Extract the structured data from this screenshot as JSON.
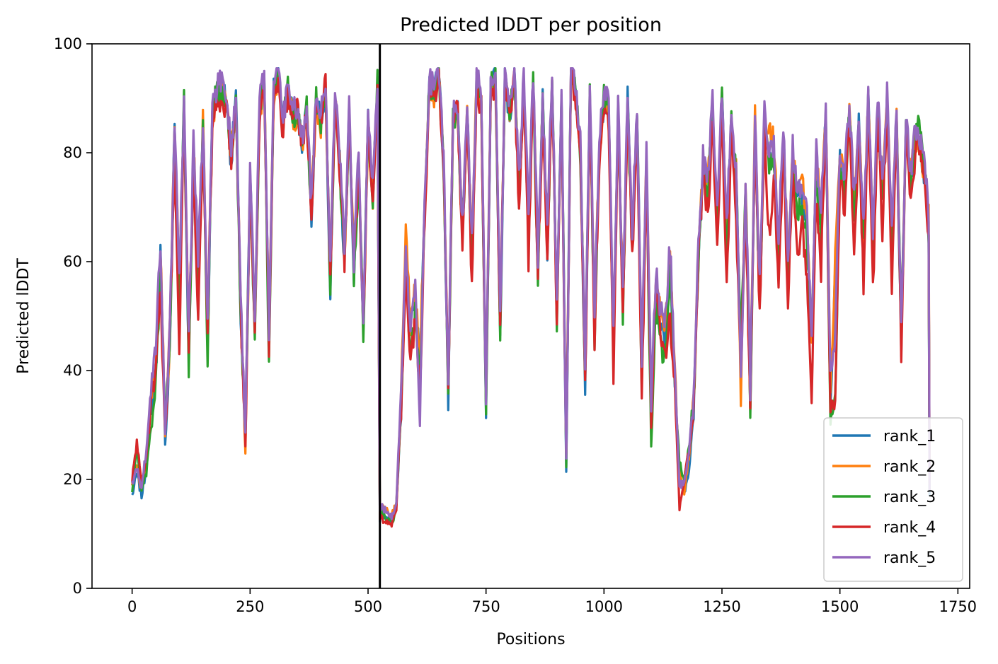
{
  "chart_data": {
    "type": "line",
    "title": "Predicted lDDT per position",
    "xlabel": "Positions",
    "ylabel": "Predicted lDDT",
    "xlim": [
      -85,
      1775
    ],
    "ylim": [
      0,
      100
    ],
    "xticks": [
      0,
      250,
      500,
      750,
      1000,
      1250,
      1500,
      1750
    ],
    "yticks": [
      0,
      20,
      40,
      60,
      80,
      100
    ],
    "grid": false,
    "legend_position": "lower-right",
    "vline_x": 525,
    "x_end": 1690,
    "keypoints_x": [
      0,
      10,
      20,
      30,
      40,
      50,
      60,
      70,
      80,
      90,
      100,
      110,
      120,
      130,
      140,
      150,
      160,
      170,
      180,
      190,
      200,
      210,
      220,
      230,
      240,
      250,
      260,
      270,
      280,
      290,
      300,
      310,
      320,
      330,
      340,
      350,
      360,
      370,
      380,
      390,
      400,
      410,
      420,
      430,
      440,
      450,
      460,
      470,
      480,
      490,
      500,
      510,
      520,
      525,
      530,
      540,
      550,
      560,
      570,
      580,
      590,
      600,
      610,
      620,
      630,
      640,
      650,
      660,
      670,
      680,
      690,
      700,
      710,
      720,
      730,
      740,
      750,
      760,
      770,
      780,
      790,
      800,
      810,
      820,
      830,
      840,
      850,
      860,
      870,
      880,
      890,
      900,
      910,
      920,
      930,
      940,
      950,
      960,
      970,
      980,
      990,
      1000,
      1010,
      1020,
      1030,
      1040,
      1050,
      1060,
      1070,
      1080,
      1090,
      1100,
      1110,
      1120,
      1130,
      1140,
      1150,
      1160,
      1170,
      1180,
      1190,
      1200,
      1210,
      1220,
      1230,
      1240,
      1250,
      1260,
      1270,
      1280,
      1290,
      1300,
      1310,
      1320,
      1330,
      1340,
      1350,
      1360,
      1370,
      1380,
      1390,
      1400,
      1410,
      1420,
      1430,
      1440,
      1450,
      1460,
      1470,
      1480,
      1490,
      1500,
      1510,
      1520,
      1530,
      1540,
      1550,
      1560,
      1570,
      1580,
      1590,
      1600,
      1610,
      1620,
      1630,
      1640,
      1650,
      1660,
      1670,
      1680,
      1690
    ],
    "series": [
      {
        "name": "rank_1",
        "color": "#1f77b4",
        "values": [
          17,
          21,
          17,
          22,
          33,
          39,
          62,
          26,
          45,
          85,
          55,
          89,
          42,
          80,
          58,
          85,
          45,
          88,
          91,
          92,
          90,
          78,
          91,
          50,
          28,
          76,
          47,
          88,
          94,
          46,
          92,
          95,
          85,
          92,
          88,
          87,
          82,
          88,
          68,
          90,
          86,
          92,
          55,
          91,
          78,
          59,
          88,
          57,
          78,
          47,
          86,
          71,
          93,
          13,
          14,
          13,
          12,
          15,
          33,
          62,
          46,
          54,
          40,
          70,
          93,
          91,
          95,
          78,
          34,
          86,
          88,
          64,
          88,
          60,
          94,
          89,
          33,
          92,
          94,
          46,
          95,
          86,
          95,
          73,
          93,
          66,
          94,
          57,
          90,
          62,
          95,
          49,
          90,
          22,
          95,
          92,
          80,
          38,
          91,
          48,
          80,
          90,
          88,
          43,
          88,
          52,
          90,
          63,
          88,
          40,
          78,
          31,
          55,
          48,
          45,
          60,
          38,
          20,
          17,
          22,
          32,
          60,
          77,
          73,
          88,
          66,
          90,
          64,
          86,
          76,
          45,
          72,
          34,
          84,
          53,
          86,
          78,
          80,
          61,
          84,
          58,
          79,
          70,
          72,
          66,
          46,
          78,
          66,
          88,
          35,
          58,
          79,
          74,
          88,
          68,
          85,
          63,
          90,
          62,
          89,
          71,
          90,
          62,
          88,
          44,
          86,
          75,
          82,
          80,
          75,
          64,
          86,
          70,
          87,
          17
        ]
      },
      {
        "name": "rank_2",
        "color": "#ff7f0e",
        "values": [
          19,
          23,
          18,
          23,
          34,
          40,
          63,
          28,
          46,
          86,
          56,
          88,
          44,
          81,
          59,
          86,
          47,
          87,
          90,
          91,
          89,
          80,
          90,
          52,
          24,
          76,
          48,
          87,
          93,
          48,
          91,
          94,
          84,
          91,
          87,
          86,
          81,
          87,
          70,
          89,
          85,
          91,
          57,
          90,
          79,
          61,
          87,
          59,
          79,
          45,
          85,
          72,
          92,
          15,
          15,
          14,
          13,
          16,
          35,
          68,
          48,
          55,
          42,
          71,
          92,
          90,
          94,
          79,
          36,
          85,
          87,
          66,
          87,
          62,
          93,
          88,
          35,
          91,
          93,
          48,
          94,
          87,
          94,
          74,
          92,
          68,
          93,
          59,
          89,
          64,
          94,
          51,
          89,
          24,
          94,
          91,
          81,
          40,
          90,
          50,
          81,
          89,
          87,
          45,
          87,
          54,
          89,
          65,
          87,
          42,
          79,
          33,
          57,
          50,
          48,
          62,
          40,
          22,
          18,
          24,
          34,
          62,
          78,
          74,
          87,
          68,
          89,
          66,
          85,
          77,
          35,
          74,
          36,
          88,
          55,
          86,
          84,
          82,
          63,
          83,
          60,
          80,
          72,
          74,
          68,
          46,
          80,
          68,
          87,
          37,
          60,
          80,
          75,
          87,
          70,
          84,
          65,
          89,
          64,
          88,
          73,
          89,
          64,
          87,
          46,
          85,
          76,
          83,
          81,
          76,
          66,
          85,
          72,
          90,
          19
        ]
      },
      {
        "name": "rank_3",
        "color": "#2ca02c",
        "values": [
          18,
          26,
          18,
          21,
          30,
          37,
          58,
          30,
          45,
          84,
          52,
          89,
          40,
          80,
          56,
          84,
          43,
          88,
          91,
          91,
          90,
          80,
          90,
          49,
          28,
          75,
          45,
          88,
          94,
          40,
          92,
          94,
          85,
          92,
          87,
          87,
          82,
          88,
          69,
          90,
          86,
          92,
          53,
          91,
          78,
          58,
          88,
          56,
          78,
          47,
          86,
          71,
          93,
          14,
          14,
          13,
          12,
          15,
          33,
          61,
          42,
          52,
          38,
          69,
          93,
          91,
          95,
          77,
          34,
          86,
          88,
          63,
          88,
          59,
          94,
          89,
          34,
          92,
          94,
          48,
          95,
          86,
          95,
          72,
          93,
          65,
          94,
          55,
          90,
          61,
          95,
          47,
          90,
          23,
          95,
          92,
          80,
          37,
          91,
          46,
          80,
          90,
          88,
          42,
          88,
          50,
          90,
          62,
          88,
          38,
          78,
          26,
          52,
          44,
          43,
          58,
          38,
          23,
          20,
          26,
          33,
          61,
          77,
          72,
          88,
          65,
          90,
          62,
          86,
          75,
          45,
          72,
          33,
          84,
          52,
          86,
          78,
          79,
          60,
          84,
          56,
          79,
          69,
          71,
          64,
          46,
          77,
          64,
          88,
          30,
          35,
          78,
          72,
          88,
          66,
          85,
          62,
          90,
          60,
          89,
          70,
          90,
          60,
          88,
          46,
          86,
          74,
          82,
          86,
          76,
          63,
          86,
          69,
          87,
          18
        ]
      },
      {
        "name": "rank_4",
        "color": "#d62728",
        "values": [
          20,
          27,
          19,
          24,
          35,
          41,
          55,
          29,
          47,
          80,
          43,
          87,
          45,
          78,
          50,
          82,
          48,
          86,
          89,
          90,
          88,
          79,
          89,
          51,
          26,
          74,
          49,
          86,
          93,
          45,
          90,
          94,
          83,
          91,
          86,
          88,
          81,
          87,
          69,
          89,
          86,
          94,
          56,
          90,
          77,
          60,
          87,
          58,
          78,
          48,
          86,
          70,
          92,
          13,
          13,
          12,
          12,
          15,
          33,
          58,
          40,
          50,
          36,
          68,
          92,
          90,
          94,
          78,
          37,
          88,
          87,
          63,
          86,
          55,
          92,
          88,
          36,
          90,
          93,
          49,
          94,
          88,
          93,
          70,
          91,
          60,
          92,
          58,
          87,
          60,
          93,
          50,
          88,
          25,
          94,
          90,
          79,
          36,
          89,
          46,
          79,
          88,
          86,
          40,
          86,
          51,
          88,
          61,
          86,
          33,
          77,
          30,
          58,
          46,
          43,
          50,
          37,
          15,
          20,
          25,
          33,
          60,
          76,
          68,
          87,
          62,
          88,
          55,
          85,
          68,
          42,
          70,
          34,
          82,
          50,
          84,
          64,
          76,
          55,
          82,
          52,
          77,
          62,
          66,
          58,
          34,
          72,
          58,
          87,
          33,
          34,
          76,
          70,
          87,
          62,
          84,
          56,
          88,
          54,
          86,
          66,
          89,
          55,
          86,
          44,
          84,
          72,
          80,
          82,
          74,
          60,
          84,
          65,
          85,
          20
        ]
      },
      {
        "name": "rank_5",
        "color": "#9467bd",
        "values": [
          19,
          22,
          19,
          25,
          37,
          45,
          64,
          28,
          48,
          86,
          57,
          89,
          46,
          82,
          60,
          86,
          49,
          89,
          92,
          93,
          91,
          80,
          91,
          53,
          28,
          77,
          50,
          89,
          95,
          48,
          93,
          95,
          86,
          93,
          89,
          88,
          83,
          89,
          70,
          91,
          87,
          93,
          58,
          92,
          80,
          62,
          89,
          60,
          80,
          47,
          87,
          73,
          94,
          15,
          15,
          14,
          13,
          16,
          36,
          63,
          48,
          56,
          32,
          72,
          94,
          92,
          95,
          80,
          36,
          87,
          89,
          67,
          89,
          63,
          95,
          90,
          36,
          93,
          95,
          50,
          95,
          88,
          95,
          75,
          94,
          69,
          95,
          60,
          91,
          65,
          95,
          52,
          91,
          24,
          95,
          93,
          82,
          41,
          92,
          51,
          82,
          91,
          89,
          46,
          89,
          55,
          91,
          66,
          89,
          43,
          80,
          34,
          58,
          51,
          49,
          63,
          41,
          19,
          19,
          25,
          35,
          63,
          79,
          76,
          89,
          69,
          91,
          67,
          87,
          78,
          37,
          75,
          37,
          86,
          56,
          87,
          80,
          81,
          64,
          85,
          61,
          81,
          73,
          75,
          69,
          45,
          81,
          69,
          89,
          38,
          45,
          81,
          76,
          89,
          71,
          86,
          66,
          91,
          65,
          90,
          74,
          91,
          65,
          89,
          47,
          87,
          77,
          84,
          83,
          78,
          67,
          87,
          73,
          88,
          18
        ]
      }
    ]
  }
}
